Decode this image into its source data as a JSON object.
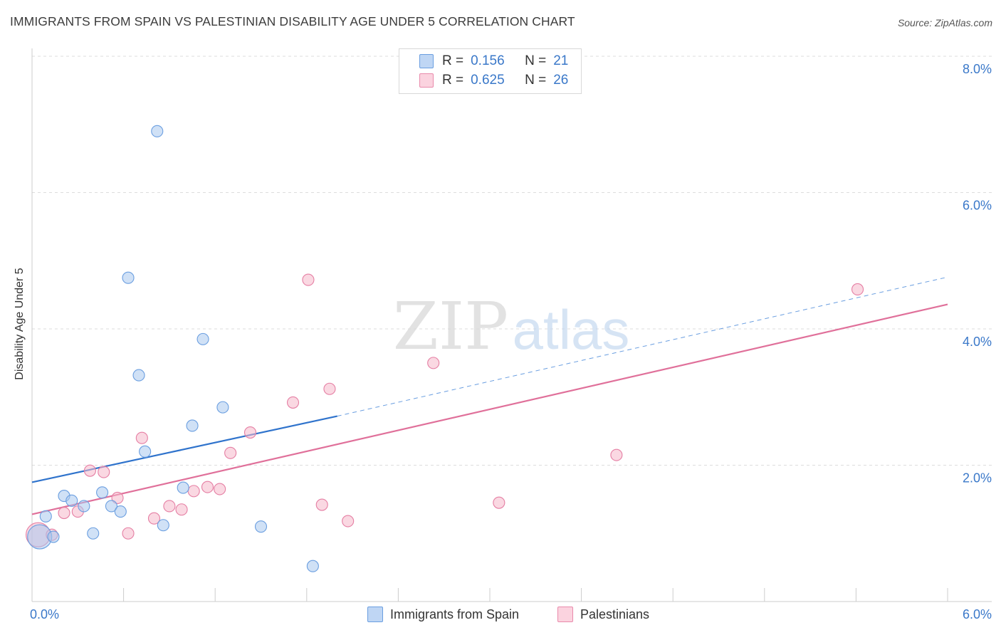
{
  "header": {
    "title": "IMMIGRANTS FROM SPAIN VS PALESTINIAN DISABILITY AGE UNDER 5 CORRELATION CHART",
    "source": "Source: ZipAtlas.com"
  },
  "watermark": {
    "zip": "ZIP",
    "atlas": "atlas"
  },
  "legend_top": [
    {
      "r_label": "R =",
      "r_value": "0.156",
      "n_label": "N =",
      "n_value": "21",
      "color": "#a9c8ef"
    },
    {
      "r_label": "R =",
      "r_value": "0.625",
      "n_label": "N =",
      "n_value": "26",
      "color": "#f6b8cb"
    }
  ],
  "legend_bottom": [
    {
      "label": "Immigrants from Spain",
      "color": "#a9c8ef"
    },
    {
      "label": "Palestinians",
      "color": "#f6b8cb"
    }
  ],
  "chart_data": {
    "type": "scatter",
    "title": "IMMIGRANTS FROM SPAIN VS PALESTINIAN DISABILITY AGE UNDER 5 CORRELATION CHART",
    "xlabel": "",
    "ylabel": "Disability Age Under 5",
    "xlim": [
      0,
      6
    ],
    "ylim": [
      0,
      8
    ],
    "x_tick_labels": [
      "0.0%",
      "6.0%"
    ],
    "y_tick_labels": [
      "2.0%",
      "4.0%",
      "6.0%",
      "8.0%"
    ],
    "y_ticks": [
      2,
      4,
      6,
      8
    ],
    "grid": true,
    "legend_position": "top-center",
    "series": [
      {
        "name": "Immigrants from Spain",
        "color": "#6a9ee0",
        "fill": "#a9c8ef",
        "points": [
          {
            "x": 0.05,
            "y": 0.95,
            "big": true
          },
          {
            "x": 0.09,
            "y": 1.25
          },
          {
            "x": 0.14,
            "y": 0.95
          },
          {
            "x": 0.21,
            "y": 1.55
          },
          {
            "x": 0.26,
            "y": 1.48
          },
          {
            "x": 0.34,
            "y": 1.4
          },
          {
            "x": 0.4,
            "y": 1.0
          },
          {
            "x": 0.46,
            "y": 1.6
          },
          {
            "x": 0.52,
            "y": 1.4
          },
          {
            "x": 0.58,
            "y": 1.32
          },
          {
            "x": 0.63,
            "y": 4.75
          },
          {
            "x": 0.7,
            "y": 3.32
          },
          {
            "x": 0.74,
            "y": 2.2
          },
          {
            "x": 0.82,
            "y": 6.9
          },
          {
            "x": 0.86,
            "y": 1.12
          },
          {
            "x": 0.99,
            "y": 1.67
          },
          {
            "x": 1.05,
            "y": 2.58
          },
          {
            "x": 1.12,
            "y": 3.85
          },
          {
            "x": 1.25,
            "y": 2.85
          },
          {
            "x": 1.5,
            "y": 1.1
          },
          {
            "x": 1.84,
            "y": 0.52
          }
        ],
        "trend": {
          "x0": 0.0,
          "y0": 1.75,
          "x1": 2.0,
          "y1": 2.72,
          "dash_to_x": 6.0,
          "dash_to_y": 4.76
        }
      },
      {
        "name": "Palestinians",
        "color": "#e57ea3",
        "fill": "#f6b8cb",
        "points": [
          {
            "x": 0.04,
            "y": 0.98,
            "big": true
          },
          {
            "x": 0.13,
            "y": 0.98
          },
          {
            "x": 0.21,
            "y": 1.3
          },
          {
            "x": 0.3,
            "y": 1.32
          },
          {
            "x": 0.38,
            "y": 1.92
          },
          {
            "x": 0.47,
            "y": 1.9
          },
          {
            "x": 0.56,
            "y": 1.52
          },
          {
            "x": 0.63,
            "y": 1.0
          },
          {
            "x": 0.72,
            "y": 2.4
          },
          {
            "x": 0.8,
            "y": 1.22
          },
          {
            "x": 0.9,
            "y": 1.4
          },
          {
            "x": 0.98,
            "y": 1.35
          },
          {
            "x": 1.06,
            "y": 1.62
          },
          {
            "x": 1.15,
            "y": 1.68
          },
          {
            "x": 1.23,
            "y": 1.65
          },
          {
            "x": 1.3,
            "y": 2.18
          },
          {
            "x": 1.43,
            "y": 2.48
          },
          {
            "x": 1.71,
            "y": 2.92
          },
          {
            "x": 1.81,
            "y": 4.72
          },
          {
            "x": 1.9,
            "y": 1.42
          },
          {
            "x": 1.95,
            "y": 3.12
          },
          {
            "x": 2.07,
            "y": 1.18
          },
          {
            "x": 2.63,
            "y": 3.5
          },
          {
            "x": 3.06,
            "y": 1.45
          },
          {
            "x": 3.83,
            "y": 2.15
          },
          {
            "x": 5.41,
            "y": 4.58
          }
        ],
        "trend": {
          "x0": 0.0,
          "y0": 1.28,
          "x1": 6.0,
          "y1": 4.36
        }
      }
    ]
  }
}
